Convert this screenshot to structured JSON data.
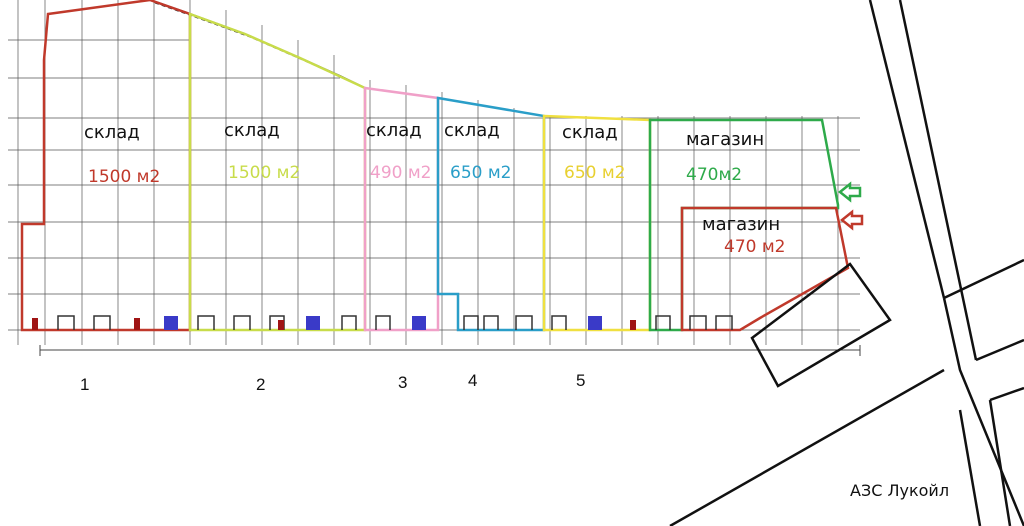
{
  "sections": [
    {
      "id": "1",
      "label": "склад",
      "area": "1500 м2",
      "number": "1",
      "color": "#c0392b"
    },
    {
      "id": "2",
      "label": "склад",
      "area": "1500 м2",
      "number": "2",
      "color": "#c8dc4a"
    },
    {
      "id": "3",
      "label": "склад",
      "area": "490 м2",
      "number": "3",
      "color": "#f0a0c8"
    },
    {
      "id": "4",
      "label": "склад",
      "area": "650 м2",
      "number": "4",
      "color": "#2a9ec8"
    },
    {
      "id": "5",
      "label": "склад",
      "area": "650 м2",
      "number": "5",
      "color": "#f0e040"
    },
    {
      "id": "6",
      "label": "магазин",
      "area": "470м2",
      "number": "",
      "color": "#2eaa4a"
    },
    {
      "id": "7",
      "label": "магазин",
      "area": "470 м2",
      "number": "",
      "color": "#c0392b"
    }
  ],
  "poi": {
    "gas_station": "АЗС Лукойл"
  },
  "colors": {
    "grid": "#555555",
    "wall": "#333333",
    "road": "#111111",
    "window_blue": "#3a3ac8",
    "door_red": "#a01414"
  }
}
